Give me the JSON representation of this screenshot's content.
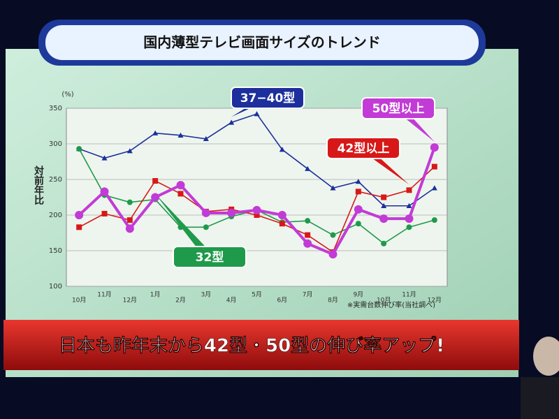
{
  "chart_data": {
    "type": "line",
    "title": "国内薄型テレビ画面サイズのトレンド",
    "ylabel": "対前年比",
    "yunit": "(%)",
    "note": "※実需台数伸び率(当社調べ)",
    "headline": "日本も昨年末から42型・50型の伸び率アップ!",
    "categories": [
      "10月",
      "11月",
      "12月",
      "1月",
      "2月",
      "3月",
      "4月",
      "5月",
      "6月",
      "7月",
      "8月",
      "9月",
      "10月",
      "11月",
      "12月"
    ],
    "ylim": [
      100,
      350
    ],
    "yticks": [
      100,
      150,
      200,
      250,
      300,
      350
    ],
    "grid": true,
    "series": [
      {
        "name": "37−40型",
        "color": "#1c2f9c",
        "marker": "triangle",
        "values": [
          293,
          280,
          290,
          315,
          312,
          307,
          330,
          342,
          292,
          265,
          238,
          247,
          213,
          213,
          238
        ]
      },
      {
        "name": "32型",
        "color": "#1f9a4a",
        "marker": "circle",
        "values": [
          293,
          228,
          218,
          222,
          183,
          183,
          198,
          207,
          190,
          192,
          172,
          188,
          160,
          183,
          193
        ]
      },
      {
        "name": "42型以上",
        "color": "#d81818",
        "marker": "square",
        "values": [
          183,
          202,
          193,
          248,
          230,
          205,
          208,
          200,
          188,
          172,
          148,
          233,
          225,
          235,
          268
        ]
      },
      {
        "name": "50型以上",
        "color": "#c23bd6",
        "marker": "circle",
        "values": [
          200,
          233,
          181,
          225,
          242,
          203,
          203,
          207,
          200,
          160,
          145,
          208,
          195,
          195,
          295
        ]
      }
    ]
  }
}
